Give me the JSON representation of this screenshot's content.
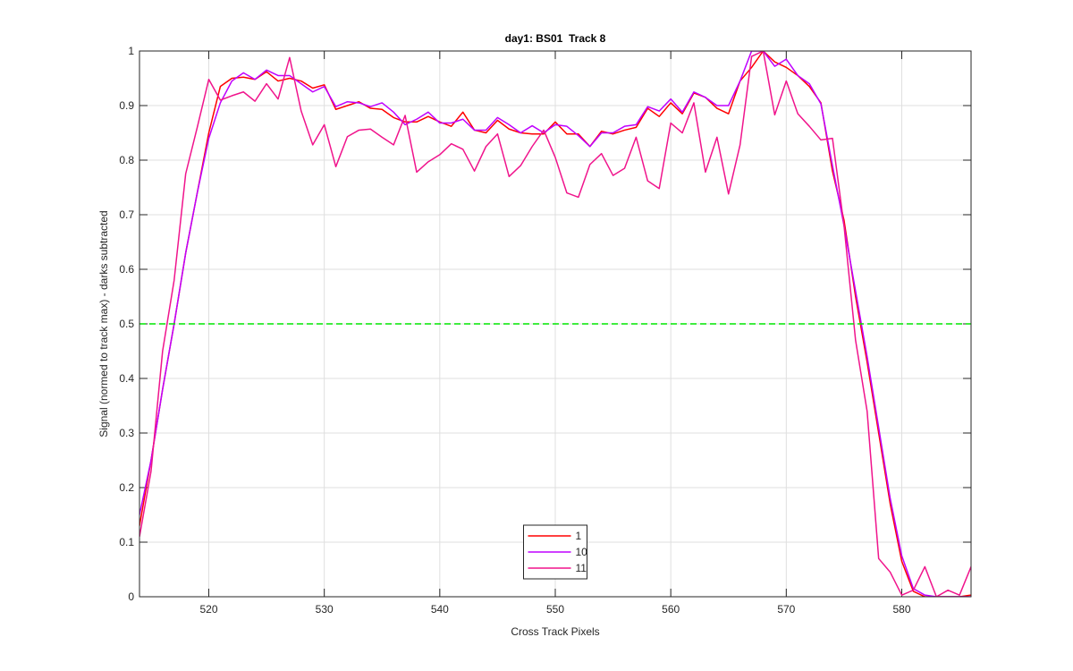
{
  "chart_data": {
    "type": "line",
    "title": "day1: BS01  Track 8",
    "x_label": "Cross Track Pixels",
    "y_label": "Signal (normed to track max) - darks subtracted",
    "x": [
      514,
      515,
      516,
      517,
      518,
      519,
      520,
      521,
      522,
      523,
      524,
      525,
      526,
      527,
      528,
      529,
      530,
      531,
      532,
      533,
      534,
      535,
      536,
      537,
      538,
      539,
      540,
      541,
      542,
      543,
      544,
      545,
      546,
      547,
      548,
      549,
      550,
      551,
      552,
      553,
      554,
      555,
      556,
      557,
      558,
      559,
      560,
      561,
      562,
      563,
      564,
      565,
      566,
      567,
      568,
      569,
      570,
      571,
      572,
      573,
      574,
      575,
      576,
      577,
      578,
      579,
      580,
      581,
      582,
      583,
      584,
      585,
      586
    ],
    "series": [
      {
        "name": "1",
        "color": "#ff0000",
        "values": [
          0.13,
          0.25,
          0.38,
          0.5,
          0.63,
          0.74,
          0.85,
          0.935,
          0.95,
          0.952,
          0.948,
          0.962,
          0.945,
          0.95,
          0.945,
          0.932,
          0.938,
          0.893,
          0.9,
          0.907,
          0.895,
          0.893,
          0.878,
          0.87,
          0.87,
          0.88,
          0.87,
          0.862,
          0.888,
          0.855,
          0.85,
          0.873,
          0.857,
          0.85,
          0.848,
          0.848,
          0.87,
          0.848,
          0.848,
          0.825,
          0.853,
          0.848,
          0.855,
          0.86,
          0.895,
          0.88,
          0.905,
          0.885,
          0.923,
          0.915,
          0.895,
          0.885,
          0.945,
          0.97,
          1.0,
          0.98,
          0.97,
          0.955,
          0.935,
          0.905,
          0.78,
          0.69,
          0.55,
          0.43,
          0.3,
          0.17,
          0.065,
          0.01,
          0.0,
          0.0,
          0.0,
          0.0,
          0.003
        ]
      },
      {
        "name": "10",
        "color": "#bf00ff",
        "values": [
          0.15,
          0.25,
          0.38,
          0.5,
          0.63,
          0.74,
          0.84,
          0.905,
          0.945,
          0.96,
          0.948,
          0.965,
          0.955,
          0.955,
          0.94,
          0.925,
          0.935,
          0.898,
          0.907,
          0.905,
          0.898,
          0.905,
          0.888,
          0.865,
          0.875,
          0.888,
          0.868,
          0.868,
          0.875,
          0.855,
          0.855,
          0.878,
          0.865,
          0.85,
          0.863,
          0.85,
          0.865,
          0.862,
          0.845,
          0.825,
          0.85,
          0.85,
          0.862,
          0.865,
          0.898,
          0.89,
          0.912,
          0.888,
          0.925,
          0.915,
          0.9,
          0.9,
          0.945,
          1.0,
          1.0,
          0.972,
          0.985,
          0.955,
          0.94,
          0.903,
          0.79,
          0.68,
          0.56,
          0.44,
          0.31,
          0.18,
          0.075,
          0.015,
          0.003,
          0.0,
          0.0,
          0.0,
          0.0
        ]
      },
      {
        "name": "11",
        "color": "#f0148c",
        "values": [
          0.11,
          0.23,
          0.45,
          0.58,
          0.775,
          0.86,
          0.948,
          0.91,
          0.918,
          0.925,
          0.908,
          0.94,
          0.912,
          0.988,
          0.89,
          0.828,
          0.865,
          0.788,
          0.843,
          0.855,
          0.857,
          0.842,
          0.828,
          0.882,
          0.778,
          0.797,
          0.81,
          0.83,
          0.82,
          0.78,
          0.825,
          0.848,
          0.77,
          0.79,
          0.825,
          0.855,
          0.805,
          0.74,
          0.732,
          0.792,
          0.812,
          0.772,
          0.785,
          0.842,
          0.762,
          0.748,
          0.868,
          0.85,
          0.905,
          0.778,
          0.842,
          0.738,
          0.828,
          0.99,
          1.0,
          0.883,
          0.945,
          0.885,
          0.862,
          0.837,
          0.84,
          0.68,
          0.47,
          0.34,
          0.07,
          0.045,
          0.003,
          0.012,
          0.055,
          0.0,
          0.012,
          0.003,
          0.055
        ]
      }
    ],
    "reference_line": {
      "value": 0.5,
      "color": "#00e600",
      "style": "dashed"
    },
    "xlim": [
      514,
      586
    ],
    "ylim": [
      0,
      1
    ],
    "xticks": [
      520,
      530,
      540,
      550,
      560,
      570,
      580
    ],
    "yticks": [
      0,
      0.1,
      0.2,
      0.3,
      0.4,
      0.5,
      0.6,
      0.7,
      0.8,
      0.9,
      1
    ],
    "grid": true,
    "legend_position": "south"
  }
}
